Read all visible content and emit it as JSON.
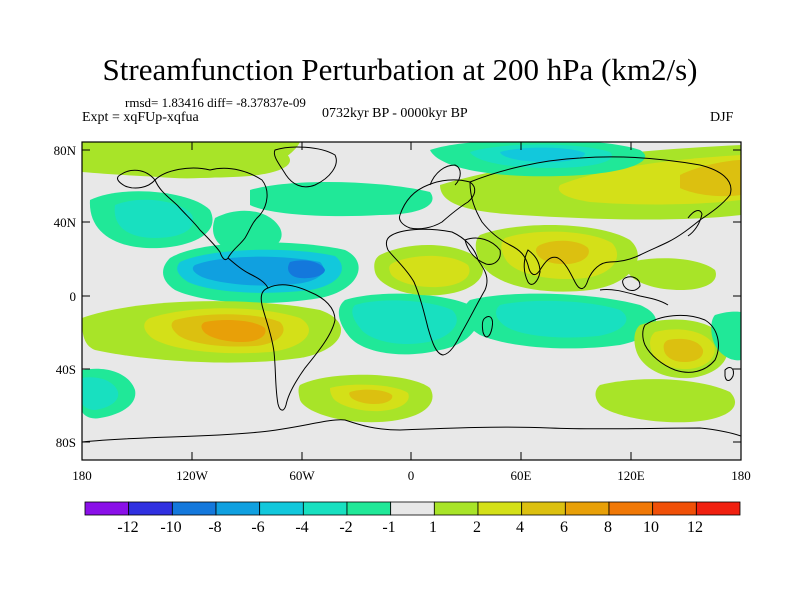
{
  "title": "Streamfunction Perturbation at 200 hPa (km2/s)",
  "stats": "rmsd= 1.83416 diff= -8.37837e-09",
  "experiment": "Expt = xqFUp-xqfua",
  "period": "0732kyr BP - 0000kyr BP",
  "season": "DJF",
  "axes": {
    "y_ticks": [
      "80N",
      "40N",
      "0",
      "40S",
      "80S"
    ],
    "x_ticks": [
      "180",
      "120W",
      "60W",
      "0",
      "60E",
      "120E",
      "180"
    ]
  },
  "colorbar": {
    "labels": [
      "-12",
      "-10",
      "-8",
      "-6",
      "-4",
      "-2",
      "-1",
      "1",
      "2",
      "4",
      "6",
      "8",
      "10",
      "12"
    ],
    "colors": [
      "#8a10e8",
      "#3030e0",
      "#1478dc",
      "#10a0e0",
      "#12c8dc",
      "#18e0c0",
      "#20e898",
      "#e8e8e8",
      "#a8e428",
      "#d4e018",
      "#dcc010",
      "#e8a008",
      "#f07806",
      "#f05008",
      "#f02010"
    ]
  },
  "background_color": "#e8e8e8",
  "coast_color": "#000000"
}
